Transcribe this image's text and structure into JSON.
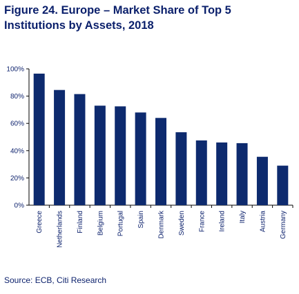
{
  "title": "Figure 24. Europe – Market Share of Top 5 Institutions by Assets, 2018",
  "source": "Source: ECB, Citi Research",
  "colors": {
    "bar": "#0d2a6e",
    "text": "#0a1f6b",
    "axis": "#000000"
  },
  "chart_data": {
    "type": "bar",
    "title": "",
    "xlabel": "",
    "ylabel": "",
    "categories": [
      "Greece",
      "Netherlands",
      "Finland",
      "Belgium",
      "Portugal",
      "Spain",
      "Denmark",
      "Sweden",
      "France",
      "Ireland",
      "Italy",
      "Austria",
      "Germany"
    ],
    "values": [
      96.5,
      84.5,
      81.5,
      73.0,
      72.5,
      68.0,
      64.0,
      53.5,
      47.5,
      46.0,
      45.5,
      35.5,
      29.0
    ],
    "ylim": [
      0,
      100
    ],
    "yticks": [
      0,
      20,
      40,
      60,
      80,
      100
    ],
    "ytick_labels": [
      "0%",
      "20%",
      "40%",
      "60%",
      "80%",
      "100%"
    ],
    "grid": false,
    "legend": "none"
  }
}
